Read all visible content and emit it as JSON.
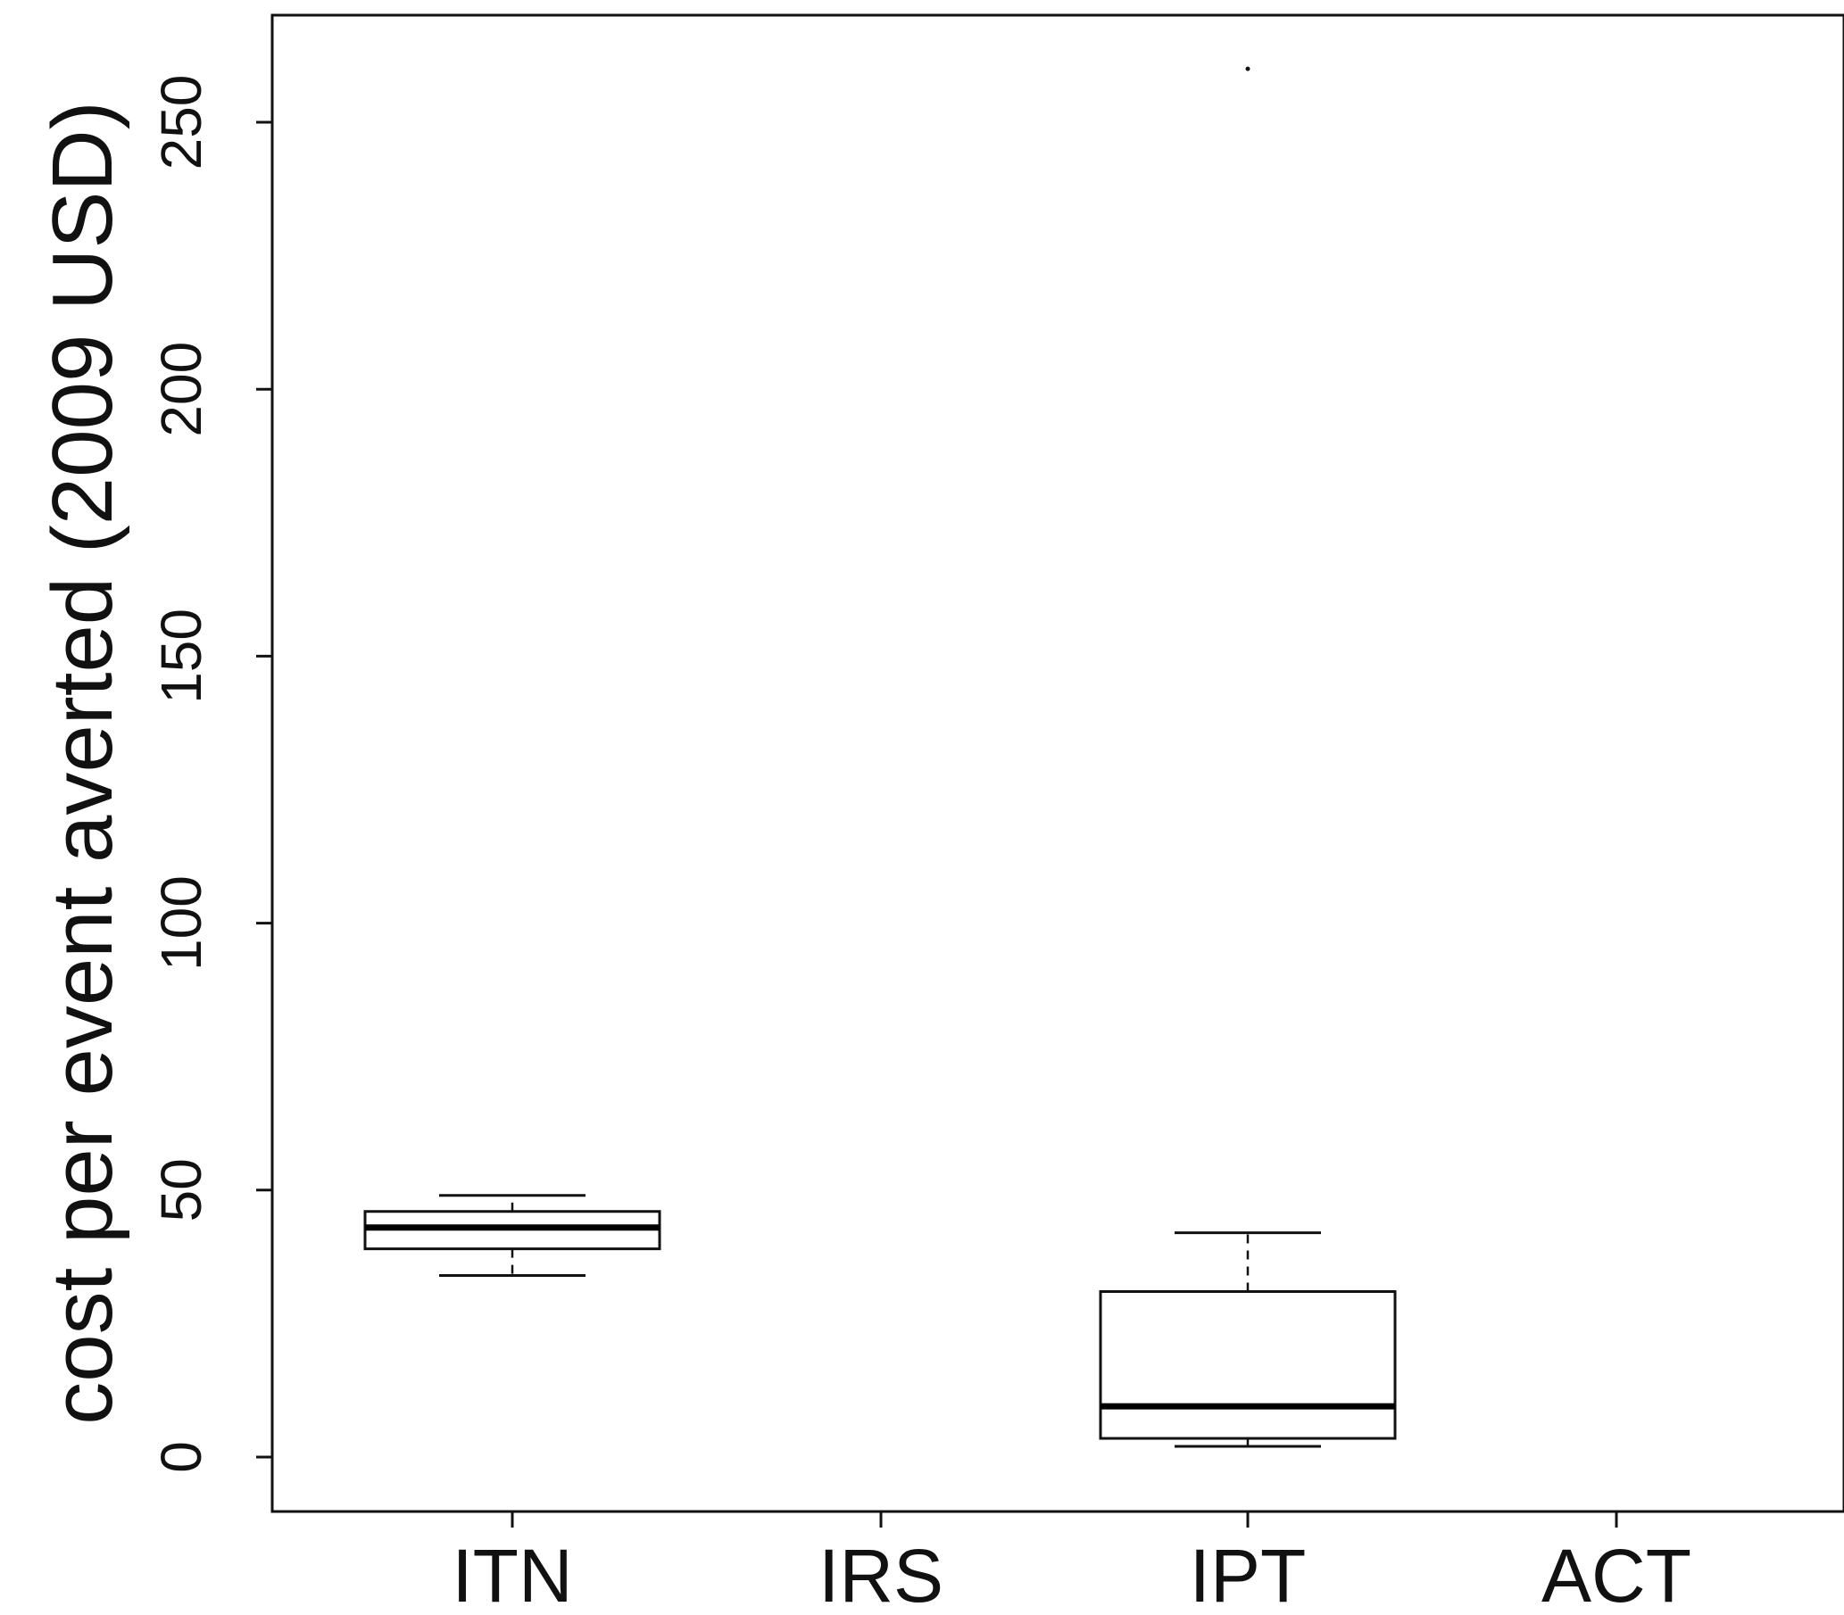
{
  "chart_data": {
    "type": "box",
    "title": "",
    "xlabel": "",
    "ylabel": "cost per event averted (2009 USD)",
    "ylim": [
      -10,
      270
    ],
    "yticks": [
      0,
      50,
      100,
      150,
      200,
      250
    ],
    "categories": [
      "ITN",
      "IRS",
      "IPT",
      "ACT"
    ],
    "boxes": [
      {
        "category": "ITN",
        "whisker_low": 34,
        "q1": 39,
        "median": 43,
        "q3": 46,
        "whisker_high": 49,
        "outliers": []
      },
      {
        "category": "IRS",
        "whisker_low": null,
        "q1": null,
        "median": null,
        "q3": null,
        "whisker_high": null,
        "outliers": []
      },
      {
        "category": "IPT",
        "whisker_low": 2,
        "q1": 3.5,
        "median": 9.5,
        "q3": 31,
        "whisker_high": 42,
        "outliers": [
          260
        ]
      },
      {
        "category": "ACT",
        "whisker_low": null,
        "q1": null,
        "median": null,
        "q3": null,
        "whisker_high": null,
        "outliers": []
      }
    ],
    "grid": false,
    "legend": "none"
  }
}
